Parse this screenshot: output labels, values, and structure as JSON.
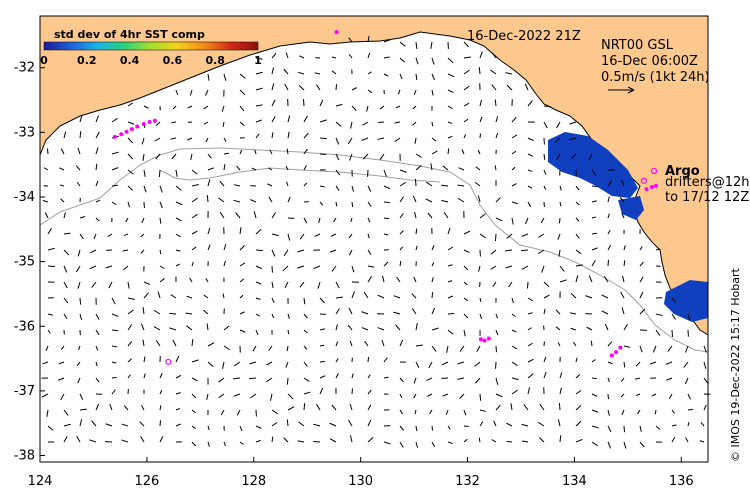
{
  "colorbar": {
    "title": "std dev of 4hr SST comp",
    "ticks": [
      "0",
      "0.2",
      "0.4",
      "0.6",
      "0.8",
      "1"
    ],
    "colors": [
      "#1c1c9c",
      "#1e5fd6",
      "#18b4e8",
      "#2ed07a",
      "#a6e02a",
      "#f5d21c",
      "#f28a1a",
      "#d12a14",
      "#8a1010"
    ]
  },
  "header": {
    "date": "16-Dec-2022 21Z",
    "product": "NRT00 GSL",
    "analysis": "16-Dec 06:00Z",
    "scale_label": "0.5m/s (1kt 24h)"
  },
  "legend": {
    "argo": "Argo",
    "drifters_line1": "drifters@12h",
    "drifters_line2": "to 17/12 12Z"
  },
  "credit": "© IMOS 19-Dec-2022 15:17 Hobart",
  "axes": {
    "x_ticks": [
      "124",
      "126",
      "128",
      "130",
      "132",
      "134",
      "136"
    ],
    "y_ticks": [
      "-32",
      "-33",
      "-34",
      "-35",
      "-36",
      "-37",
      "-38"
    ],
    "lon_range": [
      124,
      136.5
    ],
    "lat_range": [
      -38.1,
      -31.2
    ]
  },
  "colors": {
    "land": "#fcc88e",
    "coast": "#000000",
    "isobath": "#a0a0a0",
    "drifter": "#ff00ff",
    "sst_patch": "#1040c0"
  },
  "drifters": [
    {
      "lon": 125.4,
      "lat": -33.07
    },
    {
      "lon": 125.52,
      "lat": -33.03
    },
    {
      "lon": 125.62,
      "lat": -32.99
    },
    {
      "lon": 125.72,
      "lat": -32.95
    },
    {
      "lon": 125.82,
      "lat": -32.91
    },
    {
      "lon": 125.94,
      "lat": -32.87
    },
    {
      "lon": 126.05,
      "lat": -32.84
    },
    {
      "lon": 126.15,
      "lat": -32.82
    },
    {
      "lon": 129.55,
      "lat": -31.45
    },
    {
      "lon": 132.25,
      "lat": -36.2
    },
    {
      "lon": 132.32,
      "lat": -36.22
    },
    {
      "lon": 132.4,
      "lat": -36.19
    },
    {
      "lon": 134.7,
      "lat": -36.45
    },
    {
      "lon": 134.78,
      "lat": -36.4
    },
    {
      "lon": 134.86,
      "lat": -36.33
    },
    {
      "lon": 135.35,
      "lat": -33.88
    }
  ],
  "argo_floats": [
    {
      "lon": 126.4,
      "lat": -36.55
    },
    {
      "lon": 135.3,
      "lat": -33.75
    }
  ]
}
